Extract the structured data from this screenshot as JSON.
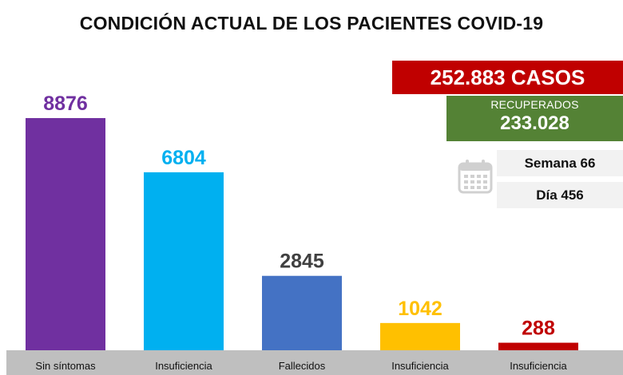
{
  "title": "CONDICIÓN ACTUAL DE LOS PACIENTES COVID-19",
  "chart_data": {
    "type": "bar",
    "categories": [
      "Sin síntomas",
      "Insuficiencia",
      "Fallecidos",
      "Insuficiencia",
      "Insuficiencia"
    ],
    "values": [
      8876,
      6804,
      2845,
      1042,
      288
    ],
    "value_labels": [
      "8876",
      "6804",
      "2845",
      "1042",
      "288"
    ],
    "colors": [
      "#7030a0",
      "#00b0f0",
      "#4472c4",
      "#ffc000",
      "#c00000"
    ],
    "label_colors": [
      "#7030a0",
      "#00b0f0",
      "#404040",
      "#ffc000",
      "#c00000"
    ],
    "axis_color": "#bfbfbf",
    "ylim": [
      0,
      8876
    ],
    "grid": false,
    "legend": "none"
  },
  "summary": {
    "cases": "252.883 CASOS",
    "recovered_label": "RECUPERADOS",
    "recovered_value": "233.028",
    "week": "Semana 66",
    "day": "Día 456"
  },
  "icons": {
    "calendar": "calendar-icon"
  }
}
